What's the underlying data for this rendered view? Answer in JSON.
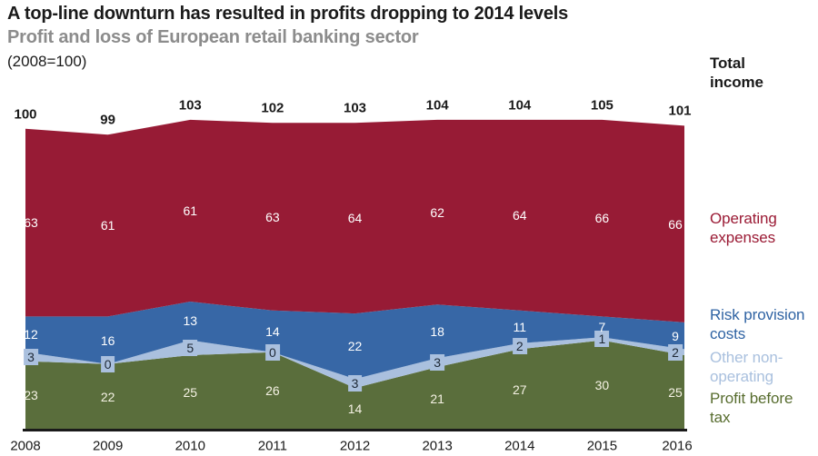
{
  "header": {
    "title": "A top-line downturn has resulted in profits dropping to 2014 levels",
    "subtitle": "Profit and loss of European retail banking sector",
    "index_note": "(2008=100)"
  },
  "legend": {
    "total_income": {
      "label": "Total income",
      "color": "#1a1a1a"
    },
    "operating_expenses": {
      "label": "Operating expenses",
      "color": "#9b1b35"
    },
    "risk_provision": {
      "label": "Risk provision costs",
      "color": "#2f63a3"
    },
    "other_non_operating": {
      "label": "Other non-operating",
      "color": "#a9c0de"
    },
    "profit_before_tax": {
      "label": "Profit before tax",
      "color": "#586d2f"
    }
  },
  "chart_data": {
    "type": "area",
    "stacked": true,
    "stack_order": "bottom-to-top",
    "title": "Profit and loss of European retail banking sector",
    "note": "(2008=100)",
    "x": [
      2008,
      2009,
      2010,
      2011,
      2012,
      2013,
      2014,
      2015,
      2016
    ],
    "total_income": [
      100,
      99,
      103,
      102,
      103,
      104,
      104,
      105,
      101
    ],
    "series": [
      {
        "name": "Profit before tax",
        "key": "profit_before_tax",
        "color": "#5a6e3c",
        "label_color": "#f5f2e4",
        "values": [
          23,
          22,
          25,
          26,
          14,
          21,
          27,
          30,
          25
        ]
      },
      {
        "name": "Other non-operating",
        "key": "other_non_operating",
        "color": "#aac0de",
        "label_color": "#1e2835",
        "badge": true,
        "values": [
          3,
          0,
          5,
          0,
          3,
          3,
          2,
          1,
          2
        ]
      },
      {
        "name": "Risk provision costs",
        "key": "risk_provision",
        "color": "#3767a6",
        "label_color": "#ffffff",
        "values": [
          12,
          16,
          13,
          14,
          22,
          18,
          11,
          7,
          9
        ]
      },
      {
        "name": "Operating expenses",
        "key": "operating_expenses",
        "color": "#971b35",
        "label_color": "#ffffff",
        "values": [
          63,
          61,
          61,
          63,
          64,
          62,
          64,
          66,
          66
        ]
      }
    ],
    "ylim": [
      0,
      110
    ],
    "grid": false,
    "legend_position": "right",
    "axis_color": "#1a1a1a"
  }
}
